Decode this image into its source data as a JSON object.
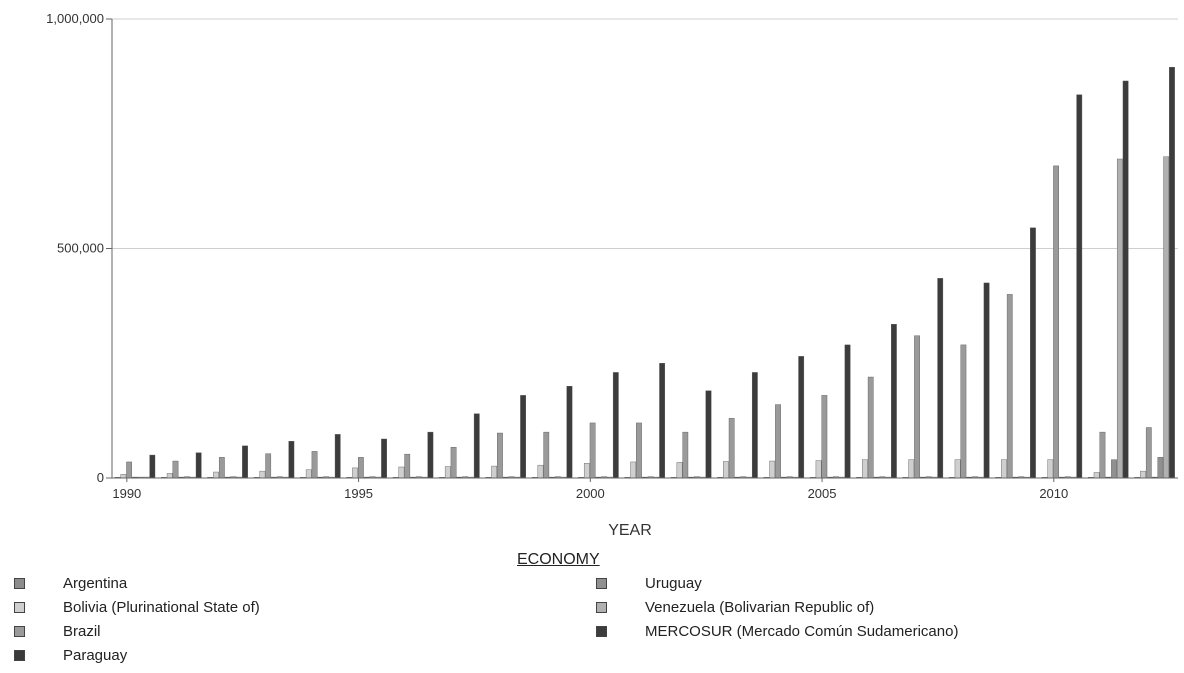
{
  "chart_data": {
    "type": "bar",
    "title": "",
    "xlabel": "YEAR",
    "ylabel": "",
    "ylim": [
      0,
      1000000
    ],
    "yticks": [
      0,
      500000,
      1000000
    ],
    "ytick_labels": [
      "0",
      "500,000",
      "1,000,000"
    ],
    "xtick_labels": [
      "1990",
      "1995",
      "2000",
      "2005",
      "2010"
    ],
    "categories": [
      "1990",
      "1991",
      "1992",
      "1993",
      "1994",
      "1995",
      "1996",
      "1997",
      "1998",
      "1999",
      "2000",
      "2001",
      "2002",
      "2003",
      "2004",
      "2005",
      "2006",
      "2007",
      "2008",
      "2009",
      "2010",
      "2011",
      "2012"
    ],
    "grid": true,
    "legend_title": "ECONOMY",
    "legend_position": "bottom",
    "series": [
      {
        "name": "Argentina",
        "color": "#8c8c8c",
        "values": [
          1000,
          1000,
          1000,
          1000,
          1000,
          1000,
          1000,
          1000,
          1000,
          1000,
          1000,
          1000,
          1000,
          1000,
          1000,
          1000,
          1000,
          1000,
          1000,
          1000,
          1000,
          1000,
          1000
        ]
      },
      {
        "name": "Bolivia (Plurinational State of)",
        "color": "#cfcfcf",
        "values": [
          8000,
          10000,
          13000,
          15000,
          18000,
          22000,
          24000,
          25000,
          26000,
          28000,
          32000,
          35000,
          34000,
          36000,
          37000,
          38000,
          40000,
          40000,
          40000,
          40000,
          40000,
          12000,
          15000
        ]
      },
      {
        "name": "Brazil",
        "color": "#9a9a9a",
        "values": [
          35000,
          37000,
          45000,
          53000,
          58000,
          45000,
          52000,
          67000,
          98000,
          100000,
          120000,
          120000,
          100000,
          130000,
          160000,
          180000,
          220000,
          310000,
          290000,
          400000,
          680000,
          100000,
          110000
        ]
      },
      {
        "name": "Paraguay",
        "color": "#3a3a3a",
        "values": [
          2000,
          2000,
          2000,
          2000,
          2000,
          2000,
          2000,
          2000,
          2000,
          2000,
          2000,
          2000,
          2000,
          2000,
          2000,
          2000,
          2000,
          2000,
          2000,
          2000,
          2000,
          2000,
          2000
        ]
      },
      {
        "name": "Uruguay",
        "color": "#909090",
        "values": [
          2000,
          3000,
          3000,
          3000,
          3000,
          3000,
          3000,
          3000,
          3000,
          3000,
          3000,
          3000,
          3000,
          3000,
          3000,
          3000,
          3000,
          3000,
          3000,
          3000,
          3000,
          40000,
          45000
        ]
      },
      {
        "name": "Venezuela (Bolivarian Republic of)",
        "color": "#b0b0b0",
        "values": [
          2000,
          2000,
          2000,
          2000,
          2000,
          2000,
          2000,
          2000,
          2000,
          2000,
          2000,
          2000,
          2000,
          2000,
          2000,
          2000,
          2000,
          2000,
          2000,
          2000,
          2000,
          695000,
          700000
        ]
      },
      {
        "name": "MERCOSUR (Mercado Común Sudamericano)",
        "color": "#3c3c3c",
        "values": [
          50000,
          55000,
          70000,
          80000,
          95000,
          85000,
          100000,
          140000,
          180000,
          200000,
          230000,
          250000,
          190000,
          230000,
          265000,
          290000,
          335000,
          435000,
          425000,
          545000,
          835000,
          865000,
          895000
        ]
      }
    ]
  }
}
